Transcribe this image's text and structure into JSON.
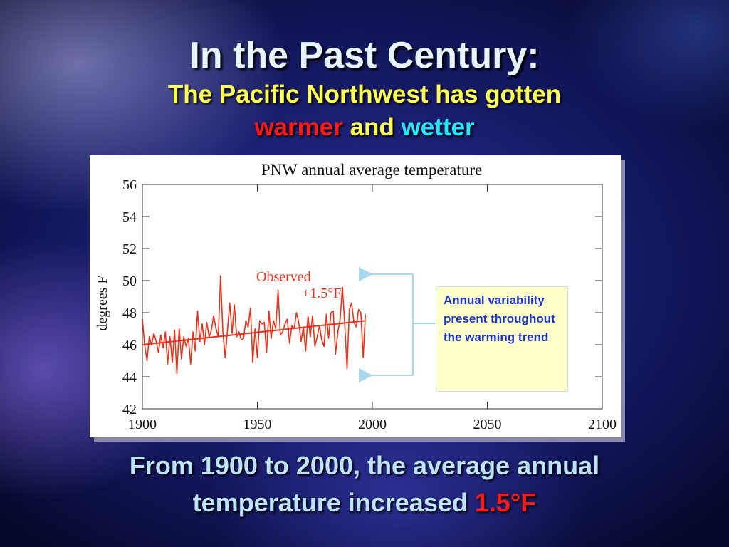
{
  "slide": {
    "title": "In the Past Century:",
    "subtitle_line1": "The Pacific Northwest has gotten",
    "subtitle_word_warmer": "warmer",
    "subtitle_word_and": "and",
    "subtitle_word_wetter": "wetter",
    "footer_line1": "From 1900 to 2000, the average annual",
    "footer_line2_text": "temperature increased",
    "footer_highlight": "1.5°F",
    "colors": {
      "title": "#e6f4ff",
      "subtitle": "#ffff55",
      "warmer": "#ff1a1a",
      "wetter": "#22e6ff",
      "footer": "#bde3ff",
      "highlight": "#ff1a1a"
    }
  },
  "annotation": {
    "text": "Annual variability present throughout the warming trend",
    "colors": {
      "text": "#1a33cc",
      "background": "#ffffcc",
      "arrows": "#a8d8f0"
    }
  },
  "chart_data": {
    "type": "line",
    "title": "PNW annual average temperature",
    "ylabel": "degrees F",
    "xlabel": "",
    "xlim": [
      1900,
      2100
    ],
    "ylim": [
      42,
      56
    ],
    "x_ticks": [
      1900,
      1950,
      2000,
      2050,
      2100
    ],
    "y_ticks": [
      42,
      44,
      46,
      48,
      50,
      52,
      54,
      56
    ],
    "grid": false,
    "annotations": {
      "series_label": "Observed",
      "trend_label": "+1.5°F"
    },
    "series": [
      {
        "name": "Observed",
        "color": "#e8331c",
        "x": [
          1900,
          1901,
          1902,
          1903,
          1904,
          1905,
          1906,
          1907,
          1908,
          1909,
          1910,
          1911,
          1912,
          1913,
          1914,
          1915,
          1916,
          1917,
          1918,
          1919,
          1920,
          1921,
          1922,
          1923,
          1924,
          1925,
          1926,
          1927,
          1928,
          1929,
          1930,
          1931,
          1932,
          1933,
          1934,
          1935,
          1936,
          1937,
          1938,
          1939,
          1940,
          1941,
          1942,
          1943,
          1944,
          1945,
          1946,
          1947,
          1948,
          1949,
          1950,
          1951,
          1952,
          1953,
          1954,
          1955,
          1956,
          1957,
          1958,
          1959,
          1960,
          1961,
          1962,
          1963,
          1964,
          1965,
          1966,
          1967,
          1968,
          1969,
          1970,
          1971,
          1972,
          1973,
          1974,
          1975,
          1976,
          1977,
          1978,
          1979,
          1980,
          1981,
          1982,
          1983,
          1984,
          1985,
          1986,
          1987,
          1988,
          1989,
          1990,
          1991,
          1992,
          1993,
          1994,
          1995,
          1996,
          1997
        ],
        "values": [
          47.6,
          46.0,
          45.0,
          46.5,
          46.0,
          46.7,
          46.2,
          45.5,
          46.6,
          45.8,
          46.8,
          44.8,
          46.5,
          44.9,
          46.9,
          44.2,
          47.0,
          45.1,
          46.5,
          45.9,
          46.4,
          44.8,
          46.8,
          45.6,
          48.1,
          46.2,
          47.3,
          46.0,
          47.4,
          46.5,
          46.9,
          47.8,
          47.0,
          46.5,
          50.3,
          46.8,
          45.2,
          46.9,
          48.6,
          46.7,
          48.5,
          46.5,
          46.8,
          46.3,
          46.4,
          47.5,
          47.1,
          48.3,
          44.9,
          47.0,
          45.2,
          47.5,
          47.3,
          47.4,
          45.5,
          48.1,
          46.4,
          47.5,
          47.0,
          49.4,
          46.6,
          46.8,
          47.3,
          47.6,
          46.1,
          47.2,
          47.0,
          48.0,
          47.4,
          46.2,
          47.1,
          45.6,
          47.8,
          46.5,
          47.8,
          45.9,
          46.5,
          47.2,
          46.3,
          45.9,
          47.9,
          46.4,
          48.0,
          48.1,
          45.4,
          46.8,
          47.6,
          49.6,
          47.3,
          44.5,
          48.2,
          48.6,
          47.4,
          47.1,
          48.2,
          48.0,
          45.2,
          47.9
        ]
      }
    ],
    "trend": {
      "x": [
        1900,
        1997
      ],
      "y": [
        46.0,
        47.5
      ],
      "color": "#e8331c"
    }
  }
}
